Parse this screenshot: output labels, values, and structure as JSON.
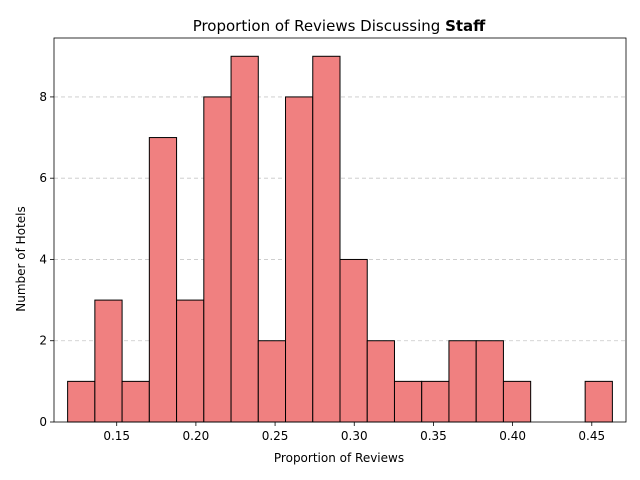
{
  "chart_data": {
    "type": "bar",
    "title": {
      "prefix": "Proportion of Reviews Discussing ",
      "emphasis": "Staff"
    },
    "xlabel": "Proportion of Reviews",
    "ylabel": "Number of Hotels",
    "bin_width": 0.0172,
    "bins": [
      {
        "start": 0.119,
        "count": 1
      },
      {
        "start": 0.1362,
        "count": 3
      },
      {
        "start": 0.1534,
        "count": 1
      },
      {
        "start": 0.1706,
        "count": 7
      },
      {
        "start": 0.1878,
        "count": 3
      },
      {
        "start": 0.205,
        "count": 8
      },
      {
        "start": 0.2222,
        "count": 9
      },
      {
        "start": 0.2394,
        "count": 2
      },
      {
        "start": 0.2566,
        "count": 8
      },
      {
        "start": 0.2738,
        "count": 9
      },
      {
        "start": 0.291,
        "count": 4
      },
      {
        "start": 0.3082,
        "count": 2
      },
      {
        "start": 0.3254,
        "count": 1
      },
      {
        "start": 0.3426,
        "count": 1
      },
      {
        "start": 0.3598,
        "count": 2
      },
      {
        "start": 0.377,
        "count": 2
      },
      {
        "start": 0.3942,
        "count": 1
      },
      {
        "start": 0.4114,
        "count": 0
      },
      {
        "start": 0.4286,
        "count": 0
      },
      {
        "start": 0.4458,
        "count": 1
      }
    ],
    "xlim": [
      0.1104,
      0.4716
    ],
    "ylim": [
      0,
      9.45
    ],
    "xticks": [
      0.15,
      0.2,
      0.25,
      0.3,
      0.35,
      0.4,
      0.45
    ],
    "xtick_labels": [
      "0.15",
      "0.20",
      "0.25",
      "0.30",
      "0.35",
      "0.40",
      "0.45"
    ],
    "yticks": [
      0,
      2,
      4,
      6,
      8
    ],
    "ytick_labels": [
      "0",
      "2",
      "4",
      "6",
      "8"
    ],
    "grid": "y-dashed",
    "colors": {
      "bar_fill": "#f08080",
      "bar_edge": "#000000",
      "grid": "#c8c8c8"
    }
  }
}
